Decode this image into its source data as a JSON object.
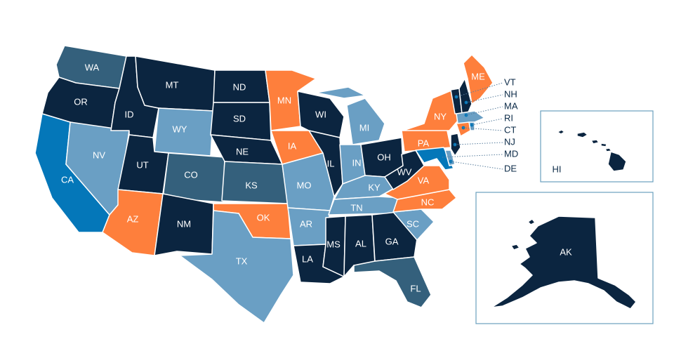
{
  "colors": {
    "dark_navy": "#0b2540",
    "slate_blue": "#34607c",
    "light_blue": "#6a9fc4",
    "bright_blue": "#0477b9",
    "orange": "#fe7f3c",
    "border": "#ffffff",
    "callout_text": "#0b2a47"
  },
  "states": [
    {
      "code": "WA",
      "color": "slate_blue"
    },
    {
      "code": "OR",
      "color": "dark_navy"
    },
    {
      "code": "CA",
      "color": "bright_blue"
    },
    {
      "code": "NV",
      "color": "light_blue"
    },
    {
      "code": "ID",
      "color": "dark_navy"
    },
    {
      "code": "MT",
      "color": "dark_navy"
    },
    {
      "code": "WY",
      "color": "light_blue"
    },
    {
      "code": "UT",
      "color": "dark_navy"
    },
    {
      "code": "AZ",
      "color": "orange"
    },
    {
      "code": "CO",
      "color": "slate_blue"
    },
    {
      "code": "NM",
      "color": "dark_navy"
    },
    {
      "code": "ND",
      "color": "dark_navy"
    },
    {
      "code": "SD",
      "color": "dark_navy"
    },
    {
      "code": "NE",
      "color": "dark_navy"
    },
    {
      "code": "KS",
      "color": "slate_blue"
    },
    {
      "code": "OK",
      "color": "orange"
    },
    {
      "code": "TX",
      "color": "light_blue"
    },
    {
      "code": "MN",
      "color": "orange"
    },
    {
      "code": "IA",
      "color": "orange"
    },
    {
      "code": "MO",
      "color": "light_blue"
    },
    {
      "code": "AR",
      "color": "light_blue"
    },
    {
      "code": "LA",
      "color": "dark_navy"
    },
    {
      "code": "WI",
      "color": "dark_navy"
    },
    {
      "code": "IL",
      "color": "dark_navy"
    },
    {
      "code": "MI",
      "color": "light_blue"
    },
    {
      "code": "IN",
      "color": "light_blue"
    },
    {
      "code": "OH",
      "color": "dark_navy"
    },
    {
      "code": "KY",
      "color": "light_blue"
    },
    {
      "code": "TN",
      "color": "light_blue"
    },
    {
      "code": "MS",
      "color": "dark_navy"
    },
    {
      "code": "AL",
      "color": "dark_navy"
    },
    {
      "code": "GA",
      "color": "dark_navy"
    },
    {
      "code": "FL",
      "color": "slate_blue"
    },
    {
      "code": "SC",
      "color": "light_blue"
    },
    {
      "code": "NC",
      "color": "orange"
    },
    {
      "code": "VA",
      "color": "orange"
    },
    {
      "code": "WV",
      "color": "dark_navy"
    },
    {
      "code": "PA",
      "color": "orange"
    },
    {
      "code": "NY",
      "color": "orange"
    },
    {
      "code": "ME",
      "color": "orange"
    },
    {
      "code": "VT",
      "color": "dark_navy"
    },
    {
      "code": "NH",
      "color": "dark_navy"
    },
    {
      "code": "MA",
      "color": "light_blue"
    },
    {
      "code": "RI",
      "color": "light_blue"
    },
    {
      "code": "CT",
      "color": "orange"
    },
    {
      "code": "NJ",
      "color": "dark_navy"
    },
    {
      "code": "MD",
      "color": "bright_blue"
    },
    {
      "code": "DE",
      "color": "light_blue"
    },
    {
      "code": "HI",
      "color": "dark_navy"
    },
    {
      "code": "AK",
      "color": "dark_navy"
    }
  ],
  "callouts": [
    "VT",
    "NH",
    "MA",
    "RI",
    "CT",
    "NJ",
    "MD",
    "DE"
  ],
  "insets": {
    "hawaii": "HI",
    "alaska": "AK"
  }
}
